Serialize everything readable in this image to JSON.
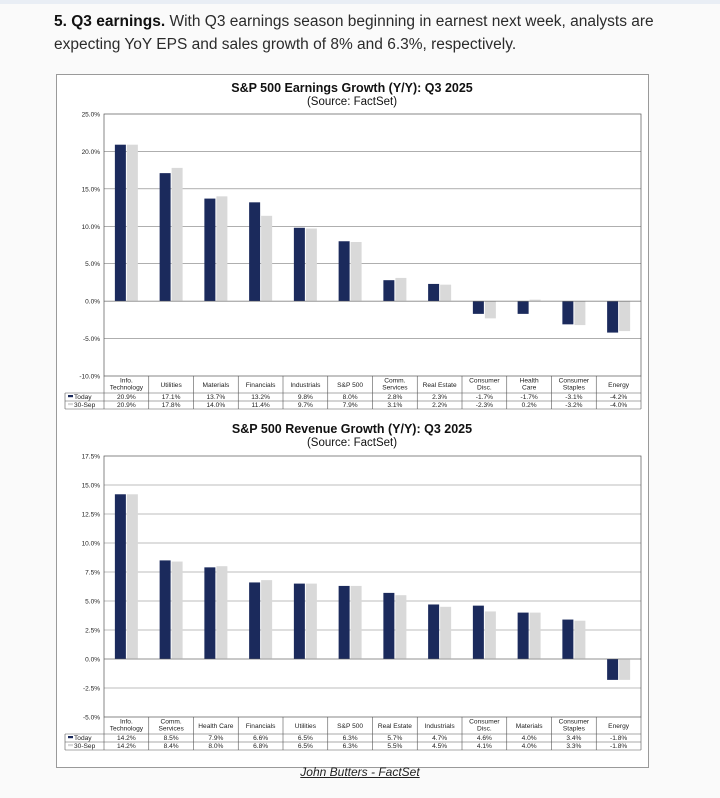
{
  "intro": {
    "heading": "5. Q3 earnings.",
    "body": "With Q3 earnings season beginning in earnest next week, analysts are expecting YoY EPS and sales growth of 8% and 6.3%, respectively."
  },
  "caption": "John Butters - FactSet",
  "colors": {
    "today": "#1b2a5c",
    "prior": "#d9d9d9"
  },
  "chart_data": [
    {
      "type": "bar",
      "title": "S&P 500 Earnings Growth (Y/Y): Q3 2025",
      "subtitle": "(Source: FactSet)",
      "categories": [
        "Info.\nTechnology",
        "Utilities",
        "Materials",
        "Financials",
        "Industrials",
        "S&P 500",
        "Comm.\nServices",
        "Real Estate",
        "Consumer\nDisc.",
        "Health\nCare",
        "Consumer\nStaples",
        "Energy"
      ],
      "series": [
        {
          "name": "Today",
          "values": [
            20.9,
            17.1,
            13.7,
            13.2,
            9.8,
            8.0,
            2.8,
            2.3,
            -1.7,
            -1.7,
            -3.1,
            -4.2
          ]
        },
        {
          "name": "30-Sep",
          "values": [
            20.9,
            17.8,
            14.0,
            11.4,
            9.7,
            7.9,
            3.1,
            2.2,
            -2.3,
            0.2,
            -3.2,
            -4.0
          ]
        }
      ],
      "table": [
        [
          "20.9%",
          "17.1%",
          "13.7%",
          "13.2%",
          "9.8%",
          "8.0%",
          "2.8%",
          "2.3%",
          "-1.7%",
          "-1.7%",
          "-3.1%",
          "-4.2%"
        ],
        [
          "20.9%",
          "17.8%",
          "14.0%",
          "11.4%",
          "9.7%",
          "7.9%",
          "3.1%",
          "2.2%",
          "-2.3%",
          "0.2%",
          "-3.2%",
          "-4.0%"
        ]
      ],
      "yticks": [
        "25.0%",
        "20.0%",
        "15.0%",
        "10.0%",
        "5.0%",
        "0.0%",
        "-5.0%",
        "-10.0%"
      ],
      "ylim": [
        -10,
        25
      ],
      "ystep": 5,
      "legend": [
        "Today",
        "30-Sep"
      ]
    },
    {
      "type": "bar",
      "title": "S&P 500 Revenue Growth (Y/Y): Q3 2025",
      "subtitle": "(Source: FactSet)",
      "categories": [
        "Info.\nTechnology",
        "Comm.\nServices",
        "Health Care",
        "Financials",
        "Utilities",
        "S&P 500",
        "Real Estate",
        "Industrials",
        "Consumer\nDisc.",
        "Materials",
        "Consumer\nStaples",
        "Energy"
      ],
      "series": [
        {
          "name": "Today",
          "values": [
            14.2,
            8.5,
            7.9,
            6.6,
            6.5,
            6.3,
            5.7,
            4.7,
            4.6,
            4.0,
            3.4,
            -1.8
          ]
        },
        {
          "name": "30-Sep",
          "values": [
            14.2,
            8.4,
            8.0,
            6.8,
            6.5,
            6.3,
            5.5,
            4.5,
            4.1,
            4.0,
            3.3,
            -1.8
          ]
        }
      ],
      "table": [
        [
          "14.2%",
          "8.5%",
          "7.9%",
          "6.6%",
          "6.5%",
          "6.3%",
          "5.7%",
          "4.7%",
          "4.6%",
          "4.0%",
          "3.4%",
          "-1.8%"
        ],
        [
          "14.2%",
          "8.4%",
          "8.0%",
          "6.8%",
          "6.5%",
          "6.3%",
          "5.5%",
          "4.5%",
          "4.1%",
          "4.0%",
          "3.3%",
          "-1.8%"
        ]
      ],
      "yticks": [
        "17.5%",
        "15.0%",
        "12.5%",
        "10.0%",
        "7.5%",
        "5.0%",
        "2.5%",
        "0.0%",
        "-2.5%",
        "-5.0%"
      ],
      "ylim": [
        -5,
        17.5
      ],
      "ystep": 2.5,
      "legend": [
        "Today",
        "30-Sep"
      ]
    }
  ]
}
